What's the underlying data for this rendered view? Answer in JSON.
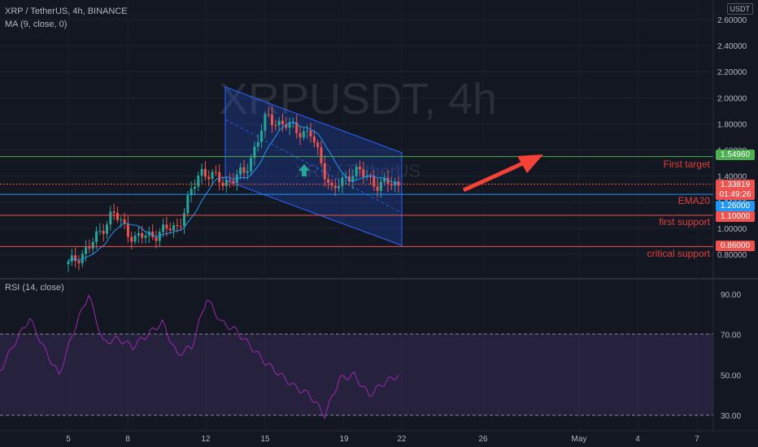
{
  "header": {
    "symbol_line": "XRP / TetherUS, 4h, BINANCE",
    "ma_line": "MA (9, close, 0)",
    "watermark_main": "XRPUSDT, 4h",
    "watermark_sub": "XRP / TetherUS",
    "currency": "USDT"
  },
  "price_axis": {
    "ticks": [
      "2.60000",
      "2.40000",
      "2.20000",
      "2.00000",
      "1.80000",
      "1.60000",
      "1.40000",
      "1.20000",
      "1.00000",
      "0.80000"
    ]
  },
  "rsi": {
    "label": "RSI (14, close)",
    "ticks": [
      "90.00",
      "70.00",
      "50.00",
      "30.00"
    ]
  },
  "time_axis": {
    "ticks": [
      "5",
      "8",
      "12",
      "15",
      "19",
      "22",
      "26",
      "May",
      "4",
      "7"
    ]
  },
  "levels": {
    "first_target": {
      "price": "1.54960",
      "note": "First target",
      "color": "#4caf50"
    },
    "current": {
      "price": "1.33819",
      "countdown": "01:49:26",
      "color": "#ef5350"
    },
    "ema20": {
      "price": "1.26000",
      "note": "EMA20",
      "color": "#2196f3"
    },
    "first_support": {
      "price": "1.10000",
      "note": "first support",
      "color": "#ef5350"
    },
    "critical_support": {
      "price": "0.86000",
      "note": "critical support",
      "color": "#ef5350"
    }
  },
  "colors": {
    "up": "#26a69a",
    "down": "#ef5350",
    "ma": "#2196f3",
    "rsi": "#9c27b0",
    "arrow": "#f44336",
    "channel": "#2962ff",
    "background": "#131722"
  },
  "icons": {
    "channel_arrow": "up-arrow-icon",
    "target_arrow": "red-arrow-icon"
  },
  "chart_data": {
    "type": "candlestick",
    "title": "XRP / TetherUS, 4h, BINANCE",
    "x": [
      "5",
      "8",
      "12",
      "15",
      "19",
      "22"
    ],
    "ylim": [
      0.7,
      2.65
    ],
    "close_approx": [
      0.72,
      0.86,
      1.12,
      0.92,
      0.96,
      1.02,
      1.45,
      1.35,
      1.42,
      1.85,
      1.78,
      1.72,
      1.28,
      1.45,
      1.34,
      1.33819
    ],
    "rsi": {
      "ylim": [
        28,
        96
      ],
      "values": [
        52,
        66,
        78,
        63,
        50,
        72,
        90,
        66,
        68,
        64,
        70,
        76,
        60,
        64,
        88,
        76,
        72,
        64,
        56,
        50,
        44,
        40,
        30,
        48,
        50,
        40,
        46,
        50
      ]
    },
    "levels": [
      1.5496,
      1.33819,
      1.26,
      1.1,
      0.86
    ]
  }
}
